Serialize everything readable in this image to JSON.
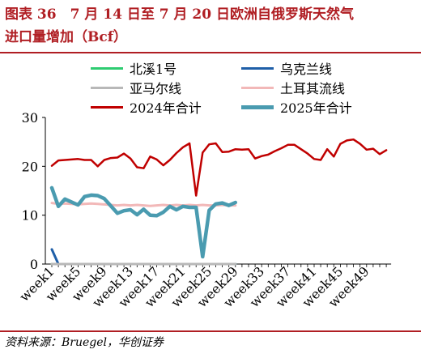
{
  "header": {
    "title_line1": "图表 36　7 月 14 日至 7 月 20 日欧洲自俄罗斯天然气",
    "title_line2": "进口量增加（Bcf）"
  },
  "footer": {
    "source": "资料来源：Bruegel，华创证券"
  },
  "colors": {
    "title_red": "#b01e23",
    "nord_stream": "#2ecc71",
    "ukraine": "#1f5fa8",
    "turkstream": "#b8b8b8",
    "yamal": "#f2b8b8",
    "total_2024": "#c00000",
    "total_2025": "#4a9bb0"
  },
  "chart_data": {
    "type": "line",
    "title": "",
    "xlabel": "",
    "ylabel": "",
    "ylim": [
      0,
      30
    ],
    "yticks": [
      0,
      10,
      20,
      30
    ],
    "x": [
      "week1",
      "week2",
      "week3",
      "week4",
      "week5",
      "week6",
      "week7",
      "week8",
      "week9",
      "week10",
      "week11",
      "week12",
      "week13",
      "week14",
      "week15",
      "week16",
      "week17",
      "week18",
      "week19",
      "week20",
      "week21",
      "week22",
      "week23",
      "week24",
      "week25",
      "week26",
      "week27",
      "week28",
      "week29",
      "week30",
      "week31",
      "week32",
      "week33",
      "week34",
      "week35",
      "week36",
      "week37",
      "week38",
      "week39",
      "week40",
      "week41",
      "week42",
      "week43",
      "week44",
      "week45",
      "week46",
      "week47",
      "week48",
      "week49",
      "week50",
      "week51",
      "week52"
    ],
    "xtick_labels": [
      "week1",
      "week5",
      "week9",
      "week13",
      "week17",
      "week21",
      "week25",
      "week29",
      "week33",
      "week37",
      "week41",
      "week45",
      "week49"
    ],
    "legend_position": "top",
    "grid": false,
    "series": [
      {
        "name": "北溪1号",
        "color_key": "nord_stream",
        "width": 3,
        "values": [
          0,
          0,
          0,
          0,
          0,
          0,
          0,
          0,
          0,
          0,
          0,
          0,
          0,
          0,
          0,
          0,
          0,
          0,
          0,
          0,
          0,
          0,
          0,
          0,
          0,
          0,
          0,
          0,
          0,
          null,
          null,
          null,
          null,
          null,
          null,
          null,
          null,
          null,
          null,
          null,
          null,
          null,
          null,
          null,
          null,
          null,
          null,
          null,
          null,
          null,
          null,
          null
        ]
      },
      {
        "name": "乌克兰线",
        "color_key": "ukraine",
        "width": 3,
        "values": [
          3.0,
          0,
          0,
          0,
          0,
          0,
          0,
          0,
          0,
          0,
          0,
          0,
          0,
          0,
          0,
          0,
          0,
          0,
          0,
          0,
          0,
          0,
          0,
          0,
          0,
          0,
          0,
          0,
          0,
          null,
          null,
          null,
          null,
          null,
          null,
          null,
          null,
          null,
          null,
          null,
          null,
          null,
          null,
          null,
          null,
          null,
          null,
          null,
          null,
          null,
          null,
          null
        ]
      },
      {
        "name": "亚马尔线",
        "color_key": "turkstream",
        "width": 3,
        "values": [
          0,
          0,
          0,
          0,
          0,
          0,
          0,
          0,
          0,
          0,
          0,
          0,
          0,
          0,
          0,
          0,
          0,
          0,
          0,
          0,
          0,
          0,
          0,
          0,
          0,
          0,
          0,
          0,
          0,
          null,
          null,
          null,
          null,
          null,
          null,
          null,
          null,
          null,
          null,
          null,
          null,
          null,
          null,
          null,
          null,
          null,
          null,
          null,
          null,
          null,
          null,
          null
        ]
      },
      {
        "name": "土耳其流线",
        "color_key": "yamal",
        "width": 3,
        "values": [
          12.5,
          12.3,
          12.4,
          12.3,
          12.2,
          12.3,
          12.4,
          12.3,
          12.2,
          12.1,
          12.0,
          12.1,
          12.0,
          12.1,
          12.0,
          11.9,
          12.0,
          12.1,
          12.0,
          12.1,
          12.0,
          12.1,
          12.0,
          12.1,
          12.0,
          12.0,
          12.1,
          12.0,
          12.0,
          null,
          null,
          null,
          null,
          null,
          null,
          null,
          null,
          null,
          null,
          null,
          null,
          null,
          null,
          null,
          null,
          null,
          null,
          null,
          null,
          null,
          null,
          null
        ]
      },
      {
        "name": "2024年合计",
        "color_key": "total_2024",
        "width": 2.5,
        "values": [
          20.1,
          21.2,
          21.3,
          21.4,
          21.5,
          21.3,
          21.3,
          20.0,
          21.3,
          21.7,
          21.8,
          22.6,
          21.6,
          19.8,
          19.6,
          22.0,
          21.4,
          20.2,
          21.3,
          22.7,
          23.9,
          24.7,
          14.0,
          22.8,
          24.5,
          24.7,
          22.9,
          23.0,
          23.5,
          23.4,
          23.5,
          21.6,
          22.1,
          22.4,
          23.1,
          23.7,
          24.4,
          24.4,
          23.5,
          22.6,
          21.5,
          21.3,
          23.5,
          22.0,
          24.6,
          25.3,
          25.5,
          24.6,
          23.4,
          23.6,
          22.5,
          23.3
        ]
      },
      {
        "name": "2025年合计",
        "color_key": "total_2025",
        "width": 4.5,
        "values": [
          15.6,
          11.8,
          13.3,
          12.7,
          12.1,
          13.8,
          14.1,
          14.0,
          13.4,
          11.9,
          10.4,
          10.9,
          11.1,
          10.1,
          11.2,
          10.0,
          9.9,
          10.6,
          11.8,
          11.1,
          11.8,
          11.6,
          11.6,
          1.5,
          11.0,
          12.3,
          12.5,
          12.0,
          12.6,
          null,
          null,
          null,
          null,
          null,
          null,
          null,
          null,
          null,
          null,
          null,
          null,
          null,
          null,
          null,
          null,
          null,
          null,
          null,
          null,
          null,
          null,
          null
        ]
      }
    ]
  }
}
